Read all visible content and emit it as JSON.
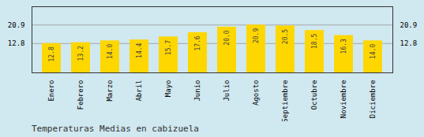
{
  "chart_data": {
    "type": "bar",
    "title": "Temperaturas Medias en cabizuela",
    "categories": [
      "Enero",
      "Febrero",
      "Marzo",
      "Abril",
      "Mayo",
      "Junio",
      "Julio",
      "Agosto",
      "Septiembre",
      "Octubre",
      "Noviembre",
      "Diciembre"
    ],
    "values": [
      12.8,
      13.2,
      14.0,
      14.4,
      15.7,
      17.6,
      20.0,
      20.9,
      20.5,
      18.5,
      16.3,
      14.0
    ],
    "value_labels": [
      "12.8",
      "13.2",
      "14.0",
      "14.4",
      "15.7",
      "17.6",
      "20.0",
      "20.9",
      "20.5",
      "18.5",
      "16.3",
      "14.0"
    ],
    "color": "#FFD700",
    "ylim": [
      0,
      28.9
    ],
    "yticks": [
      12.8,
      20.9
    ],
    "grid": true,
    "data_labels": true
  }
}
